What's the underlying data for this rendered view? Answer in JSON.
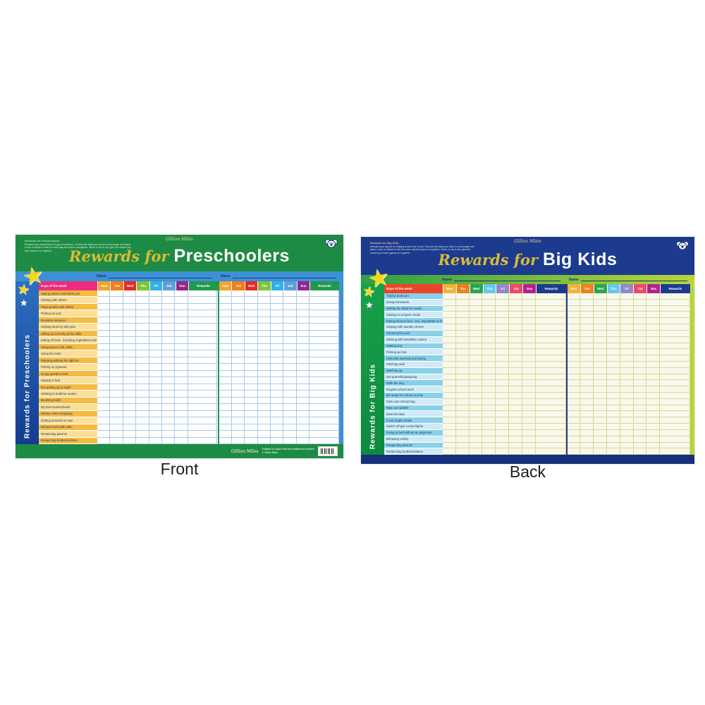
{
  "page": {
    "background": "#ffffff"
  },
  "charts": [
    {
      "id": "front",
      "side_label": "Front",
      "brand": "Gillian Miles",
      "title_script": "Rewards for",
      "title_bold": "Preschoolers",
      "sidebar_text": "Rewards for Preschoolers",
      "instructions_heading": "Rewards for Preschoolers",
      "instructions_text": "Reward your preschooler for good behaviour. Choose the tasks you wish to encourage and place a star or sticker in the box each day the task is completed. When a row is full, give the reward you have agreed on together.",
      "name_label": "Name",
      "days_header_label": "Days of the week",
      "day_columns": [
        "Mon",
        "Tue",
        "Wed",
        "Thu",
        "Fri",
        "Sat",
        "Sun",
        "Rewards"
      ],
      "weeks": 2,
      "rows": [
        "Saying please and thank you",
        "Sharing with others",
        "Playing fairly with others",
        "Picking up toys",
        "Excellent manners",
        "Helping Mummy with jobs",
        "Sitting up correctly at the table",
        "Eating all food - including vegetables and fruit",
        "Using spoon, fork, knife",
        "Using the toilet",
        "Sleeping without the light on",
        "Putting on pyjamas",
        "Going quietly to bed",
        "Staying in bed",
        "Not getting up at night",
        "Sticking to bedtime routine",
        "Brushing teeth",
        "My hair brushed/teeth",
        "Behave when shopping",
        "Getting dressed on own",
        "Behaved well with sitter",
        "Respecting parents",
        "Respecting brothers/sisters"
      ],
      "footer_brand": "Gillian Miles",
      "footer_line1": "Suitable for liquid chalk and whiteboard markers",
      "footer_line2": "© Gillian Miles",
      "colors": {
        "header_bg": "#1e8b45",
        "title_script_color": "#d9bb35",
        "title_text_color": "#ffffff",
        "brand_color": "#e8d98f",
        "strip_left": "#3e90d6",
        "strip_right": "#3e90d6",
        "name_text": "#123a78",
        "name_line": "#12407e",
        "sidebar_top": "#2e6fc2",
        "sidebar_bottom": "#143c8e",
        "sidebar_text_color": "#ffffff",
        "days_label_bg": "#ee2c7c",
        "days_label_text": "#ffffff",
        "rewards_bg": "#1e9a4c",
        "row_odd_bg": "#f4ba43",
        "row_even_bg": "#fbdf96",
        "row_text": "#1c3a6e",
        "grid_line": "#abc9e8",
        "table_bg": "#ffffff",
        "week_divider": "#1e9a4c",
        "right_edge": "#3e90d6",
        "footer_bg": "#1e8b45",
        "footer_text_color": "#ffffff",
        "instr_heading_color": "#9fe0a8",
        "instr_text_color": "#e8f5ec",
        "star_color": "#f8d718"
      },
      "day_colors": [
        "#f3a42c",
        "#f07e1c",
        "#e62a2c",
        "#7fc53a",
        "#31b2e7",
        "#5fa0da",
        "#90278e"
      ]
    },
    {
      "id": "back",
      "side_label": "Back",
      "brand": "Gillian Miles",
      "title_script": "Rewards for",
      "title_bold": "Big Kids",
      "sidebar_text": "Rewards for Big Kids",
      "instructions_heading": "Rewards for Big Kids",
      "instructions_text": "Reward your big kid for helping around the home. Choose the tasks you wish to encourage and place a star or sticker in the box each day the task is completed. When a row is full, give the reward you have agreed on together.",
      "name_label": "Name",
      "days_header_label": "Days of the week",
      "day_columns": [
        "Mon",
        "Tue",
        "Wed",
        "Thu",
        "Fri",
        "Sat",
        "Sun",
        "Rewards"
      ],
      "weeks": 2,
      "rows": [
        "Tidying bedroom",
        "Doing homework",
        "Setting the table for meals",
        "Helping to prepare meals",
        "Eating all your food - incl. vegetables & fruit",
        "Helping with laundry chores",
        "Cleaning the pool",
        "Sticking with breakfast routine",
        "Making bed",
        "Picking up toys",
        "Help with washing and drying",
        "Fetching mail",
        "Washing up",
        "Not quarrelling/arguing",
        "Walk the dog",
        "Regular school work",
        "Be ready for school on time",
        "Pack own school bag",
        "Take out rubbish",
        "Mow the lawn",
        "Cook simple meals",
        "Switch off gas cooker/lights",
        "Going to bed without an argument",
        "Behaving calmly",
        "Respecting parents",
        "Respecting brothers/sisters"
      ],
      "footer_brand": "",
      "footer_line1": "",
      "footer_line2": "",
      "colors": {
        "header_bg": "#1c3a8e",
        "title_script_color": "#d9bb35",
        "title_text_color": "#ffffff",
        "brand_color": "#e8d98f",
        "strip_left": "#2f9e42",
        "strip_right": "#b9d53a",
        "name_text": "#16307c",
        "name_line": "#16307c",
        "sidebar_top": "#17a04b",
        "sidebar_bottom": "#0e8a3e",
        "sidebar_text_color": "#ffffff",
        "days_label_bg": "#e9452b",
        "days_label_text": "#ffffff",
        "rewards_bg": "#1c3a8e",
        "row_odd_bg": "#8ad0e8",
        "row_even_bg": "#cfeaf6",
        "row_text": "#123a6e",
        "grid_line": "#d4da90",
        "table_bg": "#f8f8ec",
        "week_divider": "#1c3a8e",
        "right_edge": "#b9d53a",
        "footer_bg": "#16307e",
        "footer_text_color": "#ffffff",
        "instr_heading_color": "#f4a3a3",
        "instr_text_color": "#dff0e8",
        "star_color": "#f8d718"
      },
      "day_colors": [
        "#f2b23a",
        "#f0801e",
        "#2aa54f",
        "#66c8ef",
        "#9188ca",
        "#ee4a67",
        "#b2218d"
      ]
    }
  ]
}
